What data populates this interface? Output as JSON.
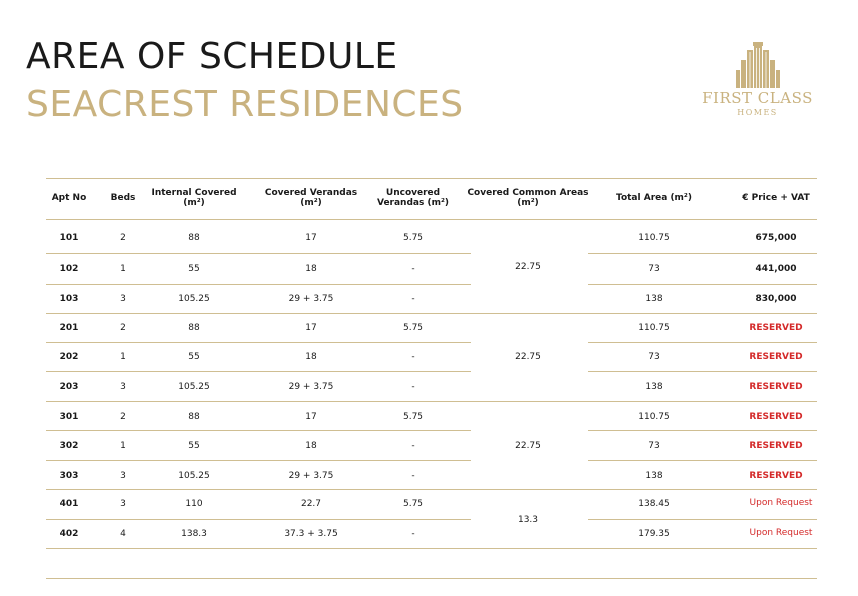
{
  "title": "AREA OF SCHEDULE",
  "subtitle": "SEACREST RESIDENCES",
  "logo": {
    "brand": "FIRST CLASS",
    "sub": "HOMES"
  },
  "colors": {
    "accent": "#c9b27f",
    "rule": "#cfbe92",
    "reserved": "#d42a2a"
  },
  "table": {
    "headers": [
      [
        "Apt No"
      ],
      [
        "Beds"
      ],
      [
        "Internal Covered",
        "(m²)"
      ],
      [
        "Covered Verandas",
        "(m²)"
      ],
      [
        "Uncovered",
        "Verandas (m²)"
      ],
      [
        "Covered Common Areas",
        "(m²)"
      ],
      [
        "Total Area (m²)"
      ],
      [
        "€ Price + VAT"
      ]
    ],
    "rows": [
      {
        "apt": "101",
        "beds": "2",
        "internal": "88",
        "covered": "17",
        "uncovered": "5.75",
        "total": "110.75",
        "price": "675,000",
        "status": "price"
      },
      {
        "apt": "102",
        "beds": "1",
        "internal": "55",
        "covered": "18",
        "uncovered": "-",
        "total": "73",
        "price": "441,000",
        "status": "price"
      },
      {
        "apt": "103",
        "beds": "3",
        "internal": "105.25",
        "covered": "29 + 3.75",
        "uncovered": "-",
        "total": "138",
        "price": "830,000",
        "status": "price"
      },
      {
        "apt": "201",
        "beds": "2",
        "internal": "88",
        "covered": "17",
        "uncovered": "5.75",
        "total": "110.75",
        "price": "RESERVED",
        "status": "reserved"
      },
      {
        "apt": "202",
        "beds": "1",
        "internal": "55",
        "covered": "18",
        "uncovered": "-",
        "total": "73",
        "price": "RESERVED",
        "status": "reserved"
      },
      {
        "apt": "203",
        "beds": "3",
        "internal": "105.25",
        "covered": "29 + 3.75",
        "uncovered": "-",
        "total": "138",
        "price": "RESERVED",
        "status": "reserved"
      },
      {
        "apt": "301",
        "beds": "2",
        "internal": "88",
        "covered": "17",
        "uncovered": "5.75",
        "total": "110.75",
        "price": "RESERVED",
        "status": "reserved"
      },
      {
        "apt": "302",
        "beds": "1",
        "internal": "55",
        "covered": "18",
        "uncovered": "-",
        "total": "73",
        "price": "RESERVED",
        "status": "reserved"
      },
      {
        "apt": "303",
        "beds": "3",
        "internal": "105.25",
        "covered": "29 + 3.75",
        "uncovered": "-",
        "total": "138",
        "price": "RESERVED",
        "status": "reserved"
      },
      {
        "apt": "401",
        "beds": "3",
        "internal": "110",
        "covered": "22.7",
        "uncovered": "5.75",
        "total": "138.45",
        "price": "Upon Request",
        "status": "request"
      },
      {
        "apt": "402",
        "beds": "4",
        "internal": "138.3",
        "covered": "37.3 + 3.75",
        "uncovered": "-",
        "total": "179.35",
        "price": "Upon Request",
        "status": "request"
      }
    ],
    "common_areas": [
      {
        "value": "22.75",
        "floor": "1"
      },
      {
        "value": "22.75",
        "floor": "2"
      },
      {
        "value": "22.75",
        "floor": "3"
      },
      {
        "value": "13.3",
        "floor": "4"
      }
    ]
  }
}
